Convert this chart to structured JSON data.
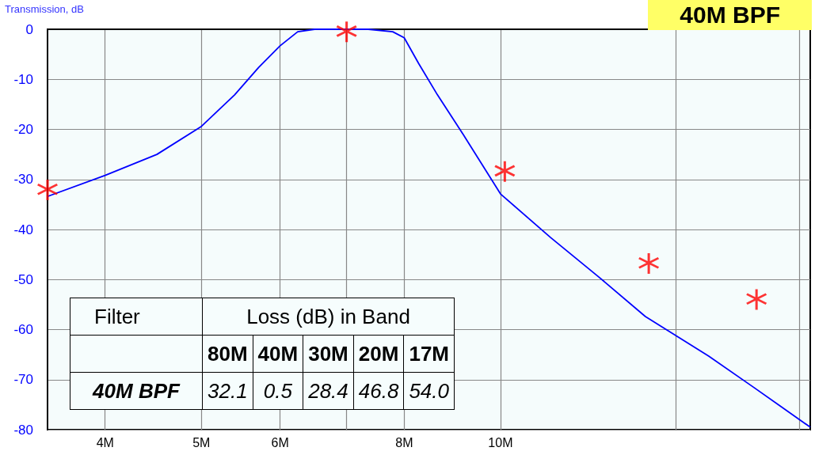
{
  "chart_data": {
    "type": "line",
    "title": "40M BPF",
    "ylabel": "Transmission, dB",
    "xlim": [
      3.5,
      20.5
    ],
    "ylim": [
      -80,
      0
    ],
    "xticks": [
      {
        "value": 4,
        "label": "4M"
      },
      {
        "value": 5,
        "label": "5M"
      },
      {
        "value": 6,
        "label": "6M"
      },
      {
        "value": 7,
        "label": null
      },
      {
        "value": 8,
        "label": "8M"
      },
      {
        "value": 10,
        "label": "10M"
      },
      {
        "value": 15,
        "label": null
      },
      {
        "value": 20,
        "label": null
      }
    ],
    "yticks": [
      -80,
      -70,
      -60,
      -50,
      -40,
      -30,
      -20,
      -10,
      0
    ],
    "log": "x",
    "grid": true,
    "series": [
      {
        "color": "#0000ff",
        "marker": "none",
        "line_style": "solid",
        "x": [
          3.5,
          4.0,
          4.51,
          5.0,
          5.4,
          5.71,
          6.0,
          6.25,
          6.5,
          7.36,
          7.79,
          8.0,
          8.27,
          8.64,
          9.17,
          10.0,
          11.23,
          12.56,
          13.99,
          16.2,
          18.0,
          20.5
        ],
        "values": [
          -33.4,
          -29.2,
          -25,
          -19.4,
          -13.1,
          -7.6,
          -3.3,
          -0.5,
          0,
          0,
          -0.5,
          -1.7,
          -6.8,
          -13.1,
          -21,
          -32.9,
          -41.6,
          -49.5,
          -57.4,
          -65.3,
          -71.6,
          -79.5
        ]
      },
      {
        "type": "scatter",
        "color": "#ff0000",
        "marker": "star",
        "x": [
          3.5,
          7.0,
          10.1,
          14.1,
          18.1
        ],
        "values": [
          -32.1,
          -0.5,
          -28.4,
          -46.8,
          -54.0
        ]
      }
    ],
    "annotations": [
      "Filter",
      "Loss (dB) in Band",
      "80M",
      "40M",
      "30M",
      "20M",
      "17M",
      "40M BPF",
      "32.1",
      "0.5",
      "28.4",
      "46.8",
      "54.0"
    ]
  }
}
